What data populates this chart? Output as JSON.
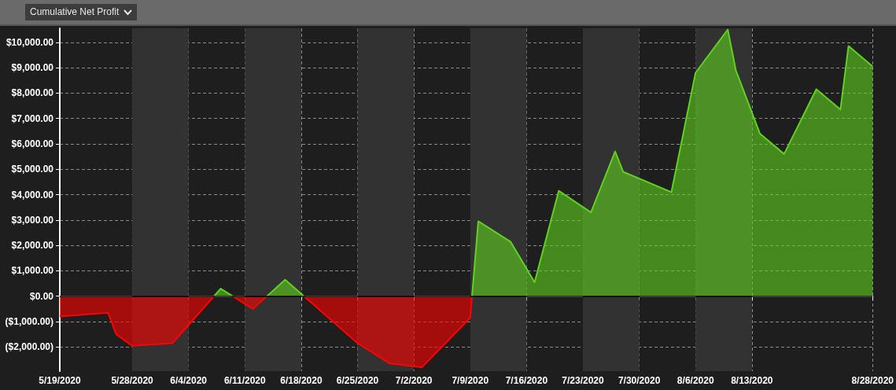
{
  "chart_data": {
    "type": "area",
    "title": "Cumulative Net Profit",
    "x": [
      "2020-05-19",
      "2020-05-25",
      "2020-05-26",
      "2020-05-28",
      "2020-06-02",
      "2020-06-08",
      "2020-06-12",
      "2020-06-16",
      "2020-06-25",
      "2020-06-29",
      "2020-07-03",
      "2020-07-09",
      "2020-07-10",
      "2020-07-14",
      "2020-07-17",
      "2020-07-20",
      "2020-07-24",
      "2020-07-27",
      "2020-07-28",
      "2020-08-03",
      "2020-08-06",
      "2020-08-10",
      "2020-08-11",
      "2020-08-14",
      "2020-08-17",
      "2020-08-21",
      "2020-08-24",
      "2020-08-25",
      "2020-08-28"
    ],
    "series": [
      {
        "colors": [
          "#ff0000",
          "#ff0000",
          "#ff0000",
          "#ff0000",
          "#ff0000",
          "#5fd11e",
          "#ff0000",
          "#5fd11e",
          "#ff0000",
          "#ff0000",
          "#ff0000",
          "#ff0000",
          "#5fd11e",
          "#5fd11e",
          "#5fd11e",
          "#5fd11e",
          "#5fd11e",
          "#5fd11e",
          "#5fd11e",
          "#5fd11e",
          "#5fd11e",
          "#5fd11e",
          "#5fd11e",
          "#5fd11e",
          "#5fd11e",
          "#5fd11e",
          "#5fd11e",
          "#5fd11e",
          "#5fd11e"
        ],
        "values": [
          -800,
          -650,
          -1500,
          -1950,
          -1850,
          300,
          -500,
          650,
          -1850,
          -2650,
          -2800,
          -850,
          2950,
          2150,
          550,
          4150,
          3300,
          5700,
          4900,
          4100,
          8800,
          10500,
          8900,
          6400,
          5600,
          8150,
          7350,
          9850,
          9050
        ]
      }
    ],
    "xlim": [
      "2020-05-19",
      "2020-08-28"
    ],
    "xticks": [
      {
        "value": "2020-05-19",
        "label": "5/19/2020"
      },
      {
        "value": "2020-05-28",
        "label": "5/28/2020"
      },
      {
        "value": "2020-06-04",
        "label": "6/4/2020"
      },
      {
        "value": "2020-06-11",
        "label": "6/11/2020"
      },
      {
        "value": "2020-06-18",
        "label": "6/18/2020"
      },
      {
        "value": "2020-06-25",
        "label": "6/25/2020"
      },
      {
        "value": "2020-07-02",
        "label": "7/2/2020"
      },
      {
        "value": "2020-07-09",
        "label": "7/9/2020"
      },
      {
        "value": "2020-07-16",
        "label": "7/16/2020"
      },
      {
        "value": "2020-07-23",
        "label": "7/23/2020"
      },
      {
        "value": "2020-07-30",
        "label": "7/30/2020"
      },
      {
        "value": "2020-08-06",
        "label": "8/6/2020"
      },
      {
        "value": "2020-08-13",
        "label": "8/13/2020"
      },
      {
        "value": "2020-08-28",
        "label": "8/28/2020"
      }
    ],
    "ylim": [
      -2950,
      10550
    ],
    "yticks": [
      {
        "value": -2000,
        "label": "($2,000.00)"
      },
      {
        "value": -1000,
        "label": "($1,000.00)"
      },
      {
        "value": 0,
        "label": "$0.00"
      },
      {
        "value": 1000,
        "label": "$1,000.00"
      },
      {
        "value": 2000,
        "label": "$2,000.00"
      },
      {
        "value": 3000,
        "label": "$3,000.00"
      },
      {
        "value": 4000,
        "label": "$4,000.00"
      },
      {
        "value": 5000,
        "label": "$5,000.00"
      },
      {
        "value": 6000,
        "label": "$6,000.00"
      },
      {
        "value": 7000,
        "label": "$7,000.00"
      },
      {
        "value": 8000,
        "label": "$8,000.00"
      },
      {
        "value": 9000,
        "label": "$9,000.00"
      },
      {
        "value": 10000,
        "label": "$10,000.00"
      }
    ],
    "ref_lines": [
      {
        "axis": "y",
        "value": 0,
        "color": "#000000"
      }
    ],
    "bands": [
      {
        "axis": "x",
        "from": "2020-05-28",
        "to": "2020-06-04",
        "color": "#323232"
      },
      {
        "axis": "x",
        "from": "2020-06-11",
        "to": "2020-06-18",
        "color": "#323232"
      },
      {
        "axis": "x",
        "from": "2020-06-25",
        "to": "2020-07-02",
        "color": "#323232"
      },
      {
        "axis": "x",
        "from": "2020-07-09",
        "to": "2020-07-16",
        "color": "#323232"
      },
      {
        "axis": "x",
        "from": "2020-07-23",
        "to": "2020-07-30",
        "color": "#323232"
      },
      {
        "axis": "x",
        "from": "2020-08-06",
        "to": "2020-08-13",
        "color": "#323232"
      }
    ],
    "grid": true,
    "marker": "none",
    "line_style": "solid"
  }
}
